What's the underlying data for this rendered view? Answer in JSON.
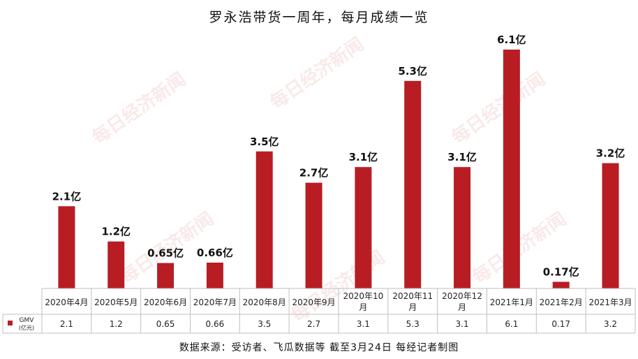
{
  "title": "罗永浩带货一周年，每月成绩一览",
  "source": "数据来源：受访者、飞瓜数据等  截至3月24日  每经记者制图",
  "watermark": "每日经济新闻",
  "chart_data": {
    "type": "bar",
    "categories": [
      "2020年4月",
      "2020年5月",
      "2020年6月",
      "2020年7月",
      "2020年8月",
      "2020年9月",
      "2020年10月",
      "2020年11月",
      "2020年12月",
      "2021年1月",
      "2021年2月",
      "2021年3月"
    ],
    "series": [
      {
        "name": "GMV",
        "unit": "(亿元)",
        "values": [
          2.1,
          1.2,
          0.65,
          0.66,
          3.5,
          2.7,
          3.1,
          5.3,
          3.1,
          6.1,
          0.17,
          3.2
        ],
        "data_labels": [
          "2.1亿",
          "1.2亿",
          "0.65亿",
          "0.66亿",
          "3.5亿",
          "2.7亿",
          "3.1亿",
          "5.3亿",
          "3.1亿",
          "6.1亿",
          "0.17亿",
          "3.2亿"
        ],
        "color": "#b81d23"
      }
    ],
    "ylim": [
      0,
      6.1
    ],
    "grid": false,
    "table_below": true
  }
}
